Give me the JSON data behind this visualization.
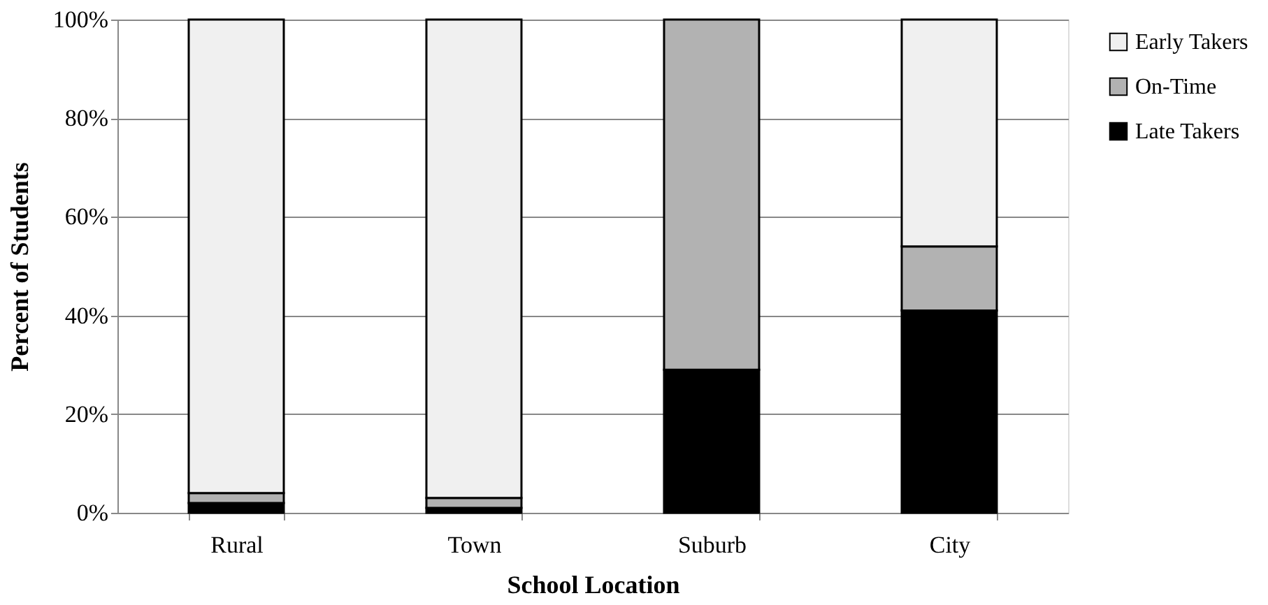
{
  "chart_data": {
    "type": "bar",
    "stacked": true,
    "xlabel": "School Location",
    "ylabel": "Percent of Students",
    "categories": [
      "Rural",
      "Town",
      "Suburb",
      "City"
    ],
    "series": [
      {
        "name": "Late Takers",
        "color": "#000000",
        "values": [
          2,
          1,
          29,
          41
        ]
      },
      {
        "name": "On-Time",
        "color": "#b2b2b2",
        "values": [
          2,
          2,
          71,
          13
        ]
      },
      {
        "name": "Early Takers",
        "color": "#f0f0f0",
        "values": [
          96,
          97,
          0,
          46
        ]
      }
    ],
    "ylim": [
      0,
      100
    ],
    "yticks": [
      {
        "value": 0,
        "label": "0%"
      },
      {
        "value": 20,
        "label": "20%"
      },
      {
        "value": 40,
        "label": "40%"
      },
      {
        "value": 60,
        "label": "60%"
      },
      {
        "value": 80,
        "label": "80%"
      },
      {
        "value": 100,
        "label": "100%"
      }
    ],
    "grid": "y",
    "legend": "right"
  }
}
